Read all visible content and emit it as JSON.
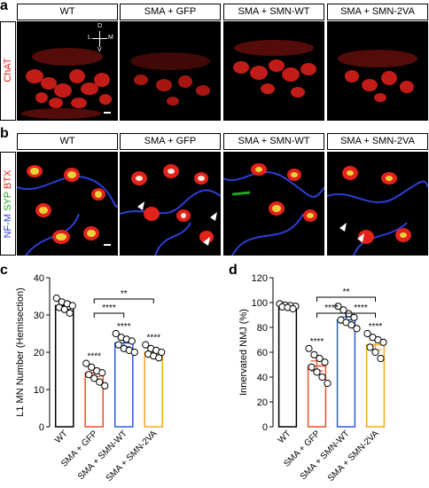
{
  "figure": {
    "panel_a": {
      "letter": "a",
      "headers": [
        "WT",
        "SMA + GFP",
        "SMA + SMN-WT",
        "SMA + SMN-2VA"
      ],
      "side_label": "ChAT",
      "compass": {
        "up": "D",
        "down": "V",
        "left": "L",
        "right": "M"
      },
      "stain_color": "#e3221c"
    },
    "panel_b": {
      "letter": "b",
      "headers": [
        "WT",
        "SMA + GFP",
        "SMA + SMN-WT",
        "SMA + SMN-2VA"
      ],
      "side_labels": [
        {
          "text": "NF-M",
          "color": "#2b3fd6"
        },
        {
          "text": "SYP",
          "color": "#1fa51f"
        },
        {
          "text": "BTX",
          "color": "#e3221c"
        }
      ]
    },
    "panel_c": {
      "letter": "c"
    },
    "panel_d": {
      "letter": "d"
    }
  },
  "chart_data": [
    {
      "type": "bar",
      "categories": [
        "WT",
        "SMA + GFP",
        "SMA + SMN-WT",
        "SMA + SMN-2VA"
      ],
      "values": [
        32.5,
        14.5,
        22.5,
        20.0
      ],
      "errors": [
        1.0,
        1.0,
        1.0,
        0.7
      ],
      "points": [
        [
          34.5,
          33.5,
          33,
          32.5,
          32,
          31.5,
          30.5
        ],
        [
          17,
          16,
          15,
          14.5,
          14,
          13,
          12,
          11
        ],
        [
          25,
          24,
          23.5,
          23,
          22,
          21,
          20.5,
          20
        ],
        [
          22,
          21,
          20.5,
          20,
          19.5,
          19,
          18.5
        ]
      ],
      "colors": [
        "#000000",
        "#e8502a",
        "#2c5ce0",
        "#f5a623"
      ],
      "ylabel": "L1 MN Number (Hemisection)",
      "ylim": [
        0,
        40
      ],
      "yticks": [
        "0",
        "10",
        "20",
        "30",
        "40"
      ],
      "bar_labels": [
        "",
        "****",
        "****",
        "****"
      ],
      "brackets": [
        {
          "from": 1,
          "to": 2,
          "label": "****"
        },
        {
          "from": 1,
          "to": 3,
          "label": "**"
        }
      ]
    },
    {
      "type": "bar",
      "categories": [
        "WT",
        "SMA + GFP",
        "SMA + SMN-WT",
        "SMA + SMN-2VA"
      ],
      "values": [
        97,
        49,
        86,
        66
      ],
      "errors": [
        1.0,
        4.0,
        2.5,
        4.0
      ],
      "points": [
        [
          99,
          98,
          97.5,
          97,
          96.5,
          96,
          95
        ],
        [
          63,
          58,
          55,
          52,
          48,
          44,
          40,
          35
        ],
        [
          97,
          94,
          91,
          88,
          86,
          84,
          82,
          79
        ],
        [
          75,
          72,
          70,
          68,
          64,
          60,
          55
        ]
      ],
      "colors": [
        "#000000",
        "#e8502a",
        "#2c5ce0",
        "#f5a623"
      ],
      "ylabel": "Innervated NMJ (%)",
      "ylim": [
        0,
        120
      ],
      "yticks": [
        "0",
        "20",
        "40",
        "60",
        "80",
        "100",
        "120"
      ],
      "bar_labels": [
        "",
        "****",
        "",
        "****"
      ],
      "brackets": [
        {
          "from": 1,
          "to": 2,
          "label": "****"
        },
        {
          "from": 2,
          "to": 3,
          "label": "****"
        },
        {
          "from": 1,
          "to": 3,
          "label": "**"
        }
      ]
    }
  ]
}
